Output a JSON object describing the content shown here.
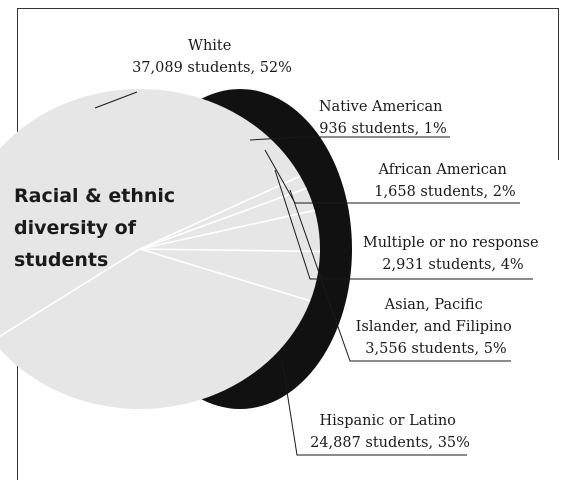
{
  "chart_data": {
    "type": "pie",
    "title_lines": [
      "Racial & ethnic",
      "diversity of",
      "students"
    ],
    "slices": [
      {
        "name": "White",
        "value_text": "37,089 students, 52%",
        "students": 37089,
        "percent": 52
      },
      {
        "name": "Native American",
        "value_text": "936 students, 1%",
        "students": 936,
        "percent": 1
      },
      {
        "name": "African American",
        "value_text": "1,658 students, 2%",
        "students": 1658,
        "percent": 2
      },
      {
        "name": "Multiple or no response",
        "value_text": "2,931 students, 4%",
        "students": 2931,
        "percent": 4
      },
      {
        "name": "Asian, Pacific Islander, and Filipino",
        "value_text": "3,556 students, 5%",
        "students": 3556,
        "percent": 5
      },
      {
        "name": "Hispanic or Latino",
        "value_text": "24,887 students, 35%",
        "students": 24887,
        "percent": 35
      }
    ],
    "label_lines": [
      [
        "White"
      ],
      [
        "Native American"
      ],
      [
        "African American"
      ],
      [
        "Multiple or no response"
      ],
      [
        "Asian, Pacific",
        "Islander, and Filipino"
      ],
      [
        "Hispanic or Latino"
      ]
    ],
    "colors": {
      "pie_fill": "#e6e6e6",
      "shadow": "#111111",
      "slice_lines": "#ffffff",
      "leaders": "#1a1a1a"
    }
  }
}
